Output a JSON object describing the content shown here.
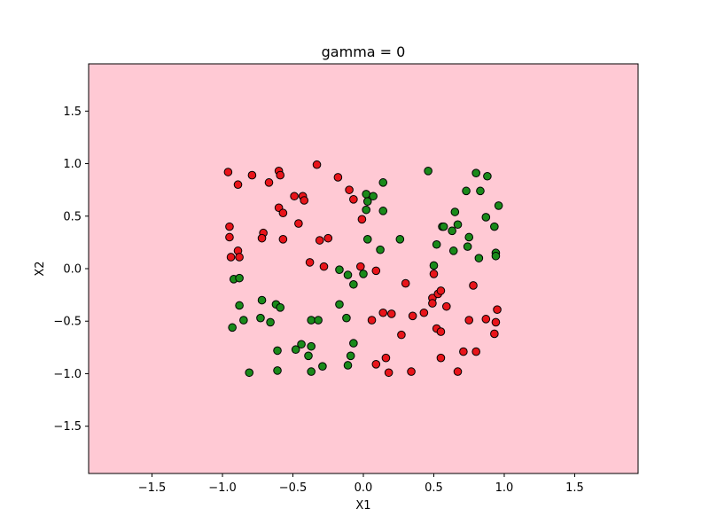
{
  "chart_data": {
    "type": "scatter",
    "title": "gamma = 0",
    "xlabel": "X1",
    "ylabel": "X2",
    "xlim": [
      -1.95,
      1.95
    ],
    "ylim": [
      -1.95,
      1.95
    ],
    "xticks": [
      -1.5,
      -1.0,
      -0.5,
      0.0,
      0.5,
      1.0,
      1.5
    ],
    "yticks": [
      -1.5,
      -1.0,
      -0.5,
      0.0,
      0.5,
      1.0,
      1.5
    ],
    "xtick_labels": [
      "−1.5",
      "−1.0",
      "−0.5",
      "0.0",
      "0.5",
      "1.0",
      "1.5"
    ],
    "ytick_labels": [
      "−1.5",
      "−1.0",
      "−0.5",
      "0.0",
      "0.5",
      "1.0",
      "1.5"
    ],
    "grid": false,
    "background_color": "#ffc9d4",
    "series": [
      {
        "color": "#e8141a",
        "points": [
          [
            -0.96,
            0.92
          ],
          [
            -0.89,
            0.8
          ],
          [
            -0.79,
            0.89
          ],
          [
            -0.67,
            0.82
          ],
          [
            -0.6,
            0.93
          ],
          [
            -0.59,
            0.89
          ],
          [
            -0.33,
            0.99
          ],
          [
            -0.43,
            0.69
          ],
          [
            -0.42,
            0.65
          ],
          [
            -0.49,
            0.69
          ],
          [
            -0.6,
            0.58
          ],
          [
            -0.57,
            0.53
          ],
          [
            -0.46,
            0.43
          ],
          [
            -0.18,
            0.87
          ],
          [
            -0.1,
            0.75
          ],
          [
            -0.07,
            0.66
          ],
          [
            -0.01,
            0.47
          ],
          [
            -0.95,
            0.4
          ],
          [
            -0.95,
            0.3
          ],
          [
            -0.71,
            0.34
          ],
          [
            -0.72,
            0.29
          ],
          [
            -0.57,
            0.28
          ],
          [
            -0.31,
            0.27
          ],
          [
            -0.25,
            0.29
          ],
          [
            -0.89,
            0.17
          ],
          [
            -0.94,
            0.11
          ],
          [
            -0.88,
            0.11
          ],
          [
            -0.38,
            0.06
          ],
          [
            -0.28,
            0.02
          ],
          [
            -0.02,
            0.02
          ],
          [
            0.09,
            -0.02
          ],
          [
            0.3,
            -0.14
          ],
          [
            0.5,
            -0.05
          ],
          [
            0.78,
            -0.16
          ],
          [
            0.49,
            -0.28
          ],
          [
            0.49,
            -0.33
          ],
          [
            0.53,
            -0.24
          ],
          [
            0.55,
            -0.21
          ],
          [
            0.59,
            -0.36
          ],
          [
            0.43,
            -0.42
          ],
          [
            0.35,
            -0.45
          ],
          [
            0.14,
            -0.42
          ],
          [
            0.2,
            -0.43
          ],
          [
            0.06,
            -0.49
          ],
          [
            0.27,
            -0.63
          ],
          [
            0.52,
            -0.57
          ],
          [
            0.55,
            -0.6
          ],
          [
            0.75,
            -0.49
          ],
          [
            0.87,
            -0.48
          ],
          [
            0.95,
            -0.39
          ],
          [
            0.94,
            -0.51
          ],
          [
            0.93,
            -0.62
          ],
          [
            0.71,
            -0.79
          ],
          [
            0.8,
            -0.79
          ],
          [
            0.55,
            -0.85
          ],
          [
            0.67,
            -0.98
          ],
          [
            0.34,
            -0.98
          ],
          [
            0.18,
            -0.99
          ],
          [
            0.16,
            -0.85
          ],
          [
            0.09,
            -0.91
          ]
        ]
      },
      {
        "color": "#1a8a1a",
        "points": [
          [
            0.46,
            0.93
          ],
          [
            0.8,
            0.91
          ],
          [
            0.88,
            0.88
          ],
          [
            0.14,
            0.82
          ],
          [
            0.73,
            0.74
          ],
          [
            0.83,
            0.74
          ],
          [
            0.02,
            0.71
          ],
          [
            0.07,
            0.69
          ],
          [
            0.03,
            0.64
          ],
          [
            0.02,
            0.56
          ],
          [
            0.14,
            0.55
          ],
          [
            0.65,
            0.54
          ],
          [
            0.96,
            0.6
          ],
          [
            0.87,
            0.49
          ],
          [
            0.67,
            0.42
          ],
          [
            0.56,
            0.4
          ],
          [
            0.57,
            0.4
          ],
          [
            0.63,
            0.36
          ],
          [
            0.93,
            0.4
          ],
          [
            0.75,
            0.3
          ],
          [
            0.26,
            0.28
          ],
          [
            0.03,
            0.28
          ],
          [
            0.52,
            0.23
          ],
          [
            0.74,
            0.21
          ],
          [
            0.64,
            0.17
          ],
          [
            0.12,
            0.18
          ],
          [
            0.94,
            0.15
          ],
          [
            0.94,
            0.12
          ],
          [
            0.82,
            0.1
          ],
          [
            0.5,
            0.03
          ],
          [
            -0.17,
            -0.01
          ],
          [
            -0.11,
            -0.06
          ],
          [
            0.0,
            -0.05
          ],
          [
            -0.07,
            -0.15
          ],
          [
            -0.92,
            -0.1
          ],
          [
            -0.88,
            -0.09
          ],
          [
            -0.88,
            -0.35
          ],
          [
            -0.72,
            -0.3
          ],
          [
            -0.62,
            -0.34
          ],
          [
            -0.59,
            -0.37
          ],
          [
            -0.17,
            -0.34
          ],
          [
            -0.12,
            -0.47
          ],
          [
            -0.37,
            -0.49
          ],
          [
            -0.32,
            -0.49
          ],
          [
            -0.85,
            -0.49
          ],
          [
            -0.73,
            -0.47
          ],
          [
            -0.66,
            -0.51
          ],
          [
            -0.93,
            -0.56
          ],
          [
            -0.61,
            -0.78
          ],
          [
            -0.44,
            -0.72
          ],
          [
            -0.48,
            -0.77
          ],
          [
            -0.37,
            -0.74
          ],
          [
            -0.39,
            -0.83
          ],
          [
            -0.07,
            -0.71
          ],
          [
            -0.09,
            -0.83
          ],
          [
            -0.11,
            -0.92
          ],
          [
            -0.29,
            -0.93
          ],
          [
            -0.37,
            -0.98
          ],
          [
            -0.61,
            -0.97
          ],
          [
            -0.81,
            -0.99
          ]
        ]
      }
    ]
  }
}
